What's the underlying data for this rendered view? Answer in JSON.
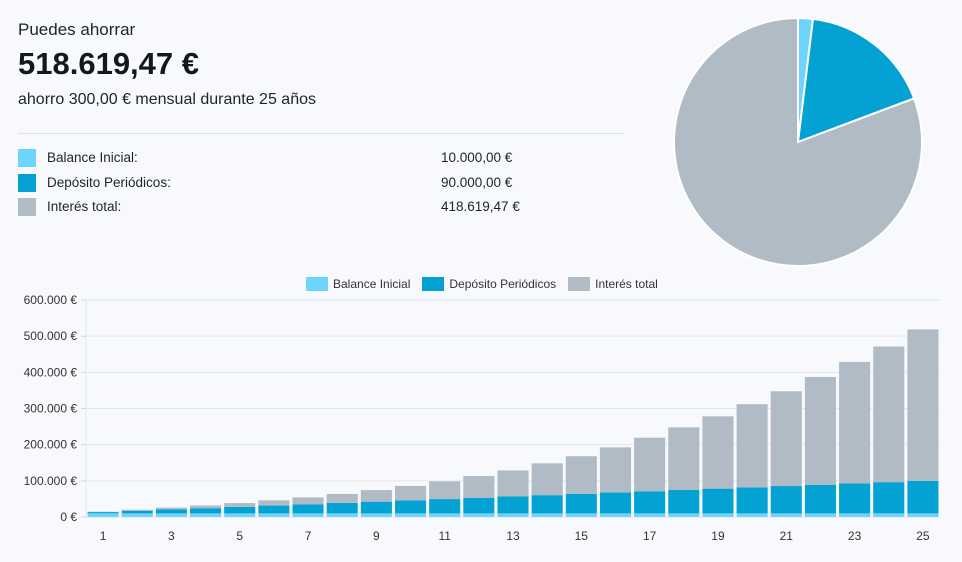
{
  "summary": {
    "eyebrow": "Puedes ahorrar",
    "total": "518.619,47 €",
    "description": "ahorro 300,00 € mensual durante 25 años"
  },
  "breakdown": [
    {
      "label": "Balance Inicial:",
      "value": "10.000,00 €",
      "color": "#6dd4fb"
    },
    {
      "label": "Depósito Periódicos:",
      "value": "90.000,00 €",
      "color": "#03a2d3"
    },
    {
      "label": "Interés total:",
      "value": "418.619,47 €",
      "color": "#b0bbc6"
    }
  ],
  "chart_data": [
    {
      "type": "pie",
      "series": [
        {
          "name": "Balance Inicial",
          "value": 10000,
          "color": "#6dd4fb"
        },
        {
          "name": "Depósito Periódicos",
          "value": 90000,
          "color": "#03a2d3"
        },
        {
          "name": "Interés total",
          "value": 418619.47,
          "color": "#b0bbc6"
        }
      ]
    },
    {
      "type": "bar",
      "stacked": true,
      "legend": "top",
      "grid": true,
      "categories": [
        1,
        2,
        3,
        4,
        5,
        6,
        7,
        8,
        9,
        10,
        11,
        12,
        13,
        14,
        15,
        16,
        17,
        18,
        19,
        20,
        21,
        22,
        23,
        24,
        25
      ],
      "x_tick_labels": [
        "1",
        "3",
        "5",
        "7",
        "9",
        "11",
        "13",
        "15",
        "17",
        "19",
        "21",
        "23",
        "25"
      ],
      "y_ticks": [
        {
          "value": 0,
          "label": "0 €"
        },
        {
          "value": 100000,
          "label": "100.000 €"
        },
        {
          "value": 200000,
          "label": "200.000 €"
        },
        {
          "value": 300000,
          "label": "300.000 €"
        },
        {
          "value": 400000,
          "label": "400.000 €"
        },
        {
          "value": 500000,
          "label": "500.000 €"
        },
        {
          "value": 600000,
          "label": "600.000 €"
        }
      ],
      "ylim": [
        0,
        600000
      ],
      "series": [
        {
          "name": "Balance Inicial",
          "color": "#6dd4fb",
          "values": [
            10000,
            10000,
            10000,
            10000,
            10000,
            10000,
            10000,
            10000,
            10000,
            10000,
            10000,
            10000,
            10000,
            10000,
            10000,
            10000,
            10000,
            10000,
            10000,
            10000,
            10000,
            10000,
            10000,
            10000,
            10000
          ]
        },
        {
          "name": "Depósito Periódicos",
          "color": "#03a2d3",
          "values": [
            3600,
            7200,
            10800,
            14400,
            18000,
            21600,
            25200,
            28800,
            32400,
            36000,
            39600,
            43200,
            46800,
            50400,
            54000,
            57600,
            61200,
            64800,
            68400,
            72000,
            75600,
            79200,
            82800,
            86400,
            90000
          ]
        },
        {
          "name": "Interés total",
          "color": "#b0bbc6",
          "values": [
            1000,
            3000,
            5000,
            7500,
            10500,
            14500,
            19000,
            25000,
            32000,
            40000,
            49000,
            60000,
            72000,
            88000,
            104000,
            125000,
            148000,
            173000,
            200000,
            230000,
            262000,
            298000,
            336000,
            375000,
            418619.47
          ]
        }
      ]
    }
  ]
}
